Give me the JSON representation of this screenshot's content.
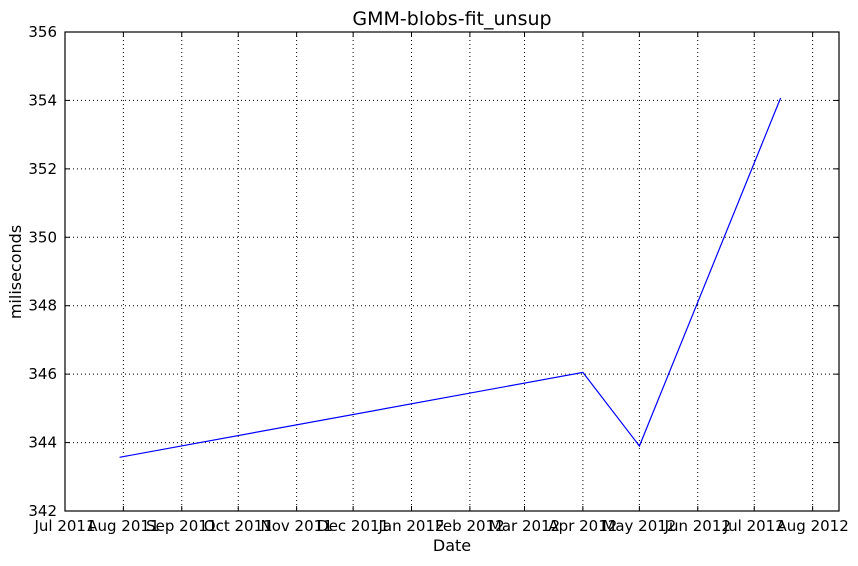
{
  "chart_data": {
    "type": "line",
    "title": "GMM-blobs-fit_unsup",
    "xlabel": "Date",
    "ylabel": "miliseconds",
    "x_tick_labels": [
      "Jul 2011",
      "Aug 2011",
      "Sep 2011",
      "Oct 2011",
      "Nov 2011",
      "Dec 2011",
      "Jan 2012",
      "Feb 2012",
      "Mar 2012",
      "Apr 2012",
      "May 2012",
      "Jun 2012",
      "Jul 2012",
      "Aug 2012"
    ],
    "y_ticks": [
      342,
      344,
      346,
      348,
      350,
      352,
      354,
      356
    ],
    "xlim": [
      "2011-07-01",
      "2012-08-15"
    ],
    "ylim": [
      342,
      356
    ],
    "grid": true,
    "series": [
      {
        "color": "#0000ff",
        "x": [
          "2011-07-30",
          "2012-04-01",
          "2012-05-01",
          "2012-07-15"
        ],
        "values": [
          343.57,
          346.05,
          343.9,
          354.07
        ]
      }
    ]
  }
}
